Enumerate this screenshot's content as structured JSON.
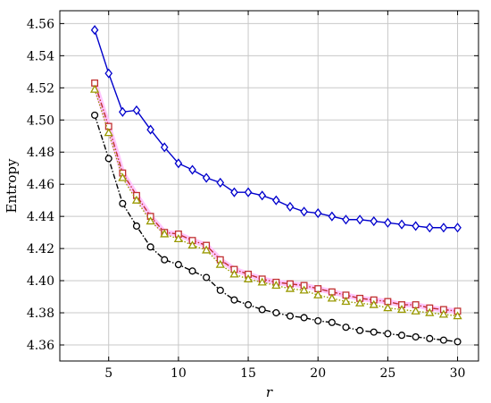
{
  "chart_data": {
    "type": "line",
    "title": "",
    "xlabel": "r",
    "ylabel": "Entropy",
    "xlim": [
      1.5,
      31.5
    ],
    "ylim": [
      4.35,
      4.568
    ],
    "xticks": [
      5,
      10,
      15,
      20,
      25,
      30
    ],
    "yticks": [
      4.36,
      4.38,
      4.4,
      4.42,
      4.44,
      4.46,
      4.48,
      4.5,
      4.52,
      4.54,
      4.56
    ],
    "xtick_labels": [
      "5",
      "10",
      "15",
      "20",
      "25",
      "30"
    ],
    "ytick_labels": [
      "4.36",
      "4.38",
      "4.40",
      "4.42",
      "4.44",
      "4.46",
      "4.48",
      "4.50",
      "4.52",
      "4.54",
      "4.56"
    ],
    "grid": true,
    "legend": "none",
    "x": [
      4,
      5,
      6,
      7,
      8,
      9,
      10,
      11,
      12,
      13,
      14,
      15,
      16,
      17,
      18,
      19,
      20,
      21,
      22,
      23,
      24,
      25,
      26,
      27,
      28,
      29,
      30
    ],
    "series": [
      {
        "color": "#0000cc",
        "marker": "diamond",
        "line": "solid",
        "values": [
          4.556,
          4.529,
          4.505,
          4.506,
          4.494,
          4.483,
          4.473,
          4.469,
          4.464,
          4.461,
          4.455,
          4.455,
          4.453,
          4.45,
          4.446,
          4.443,
          4.442,
          4.44,
          4.438,
          4.438,
          4.437,
          4.436,
          4.435,
          4.434,
          4.433,
          4.433,
          4.433
        ]
      },
      {
        "color": "#c03030",
        "marker": "square",
        "line": "dashdot",
        "halo": "#ffc0ff",
        "values": [
          4.523,
          4.496,
          4.467,
          4.453,
          4.44,
          4.43,
          4.429,
          4.425,
          4.422,
          4.413,
          4.407,
          4.404,
          4.401,
          4.399,
          4.398,
          4.397,
          4.395,
          4.393,
          4.391,
          4.389,
          4.388,
          4.387,
          4.385,
          4.385,
          4.383,
          4.382,
          4.381
        ]
      },
      {
        "color": "#999900",
        "marker": "triangle",
        "line": "dotted",
        "values": [
          4.519,
          4.492,
          4.464,
          4.45,
          4.437,
          4.429,
          4.426,
          4.422,
          4.419,
          4.41,
          4.404,
          4.401,
          4.399,
          4.397,
          4.395,
          4.394,
          4.391,
          4.389,
          4.387,
          4.386,
          4.385,
          4.383,
          4.382,
          4.381,
          4.38,
          4.379,
          4.378
        ]
      },
      {
        "color": "#000000",
        "marker": "circle",
        "line": "dashdot",
        "values": [
          4.503,
          4.476,
          4.448,
          4.434,
          4.421,
          4.413,
          4.41,
          4.406,
          4.402,
          4.394,
          4.388,
          4.385,
          4.382,
          4.38,
          4.378,
          4.377,
          4.375,
          4.374,
          4.371,
          4.369,
          4.368,
          4.367,
          4.366,
          4.365,
          4.364,
          4.363,
          4.362
        ]
      }
    ]
  }
}
